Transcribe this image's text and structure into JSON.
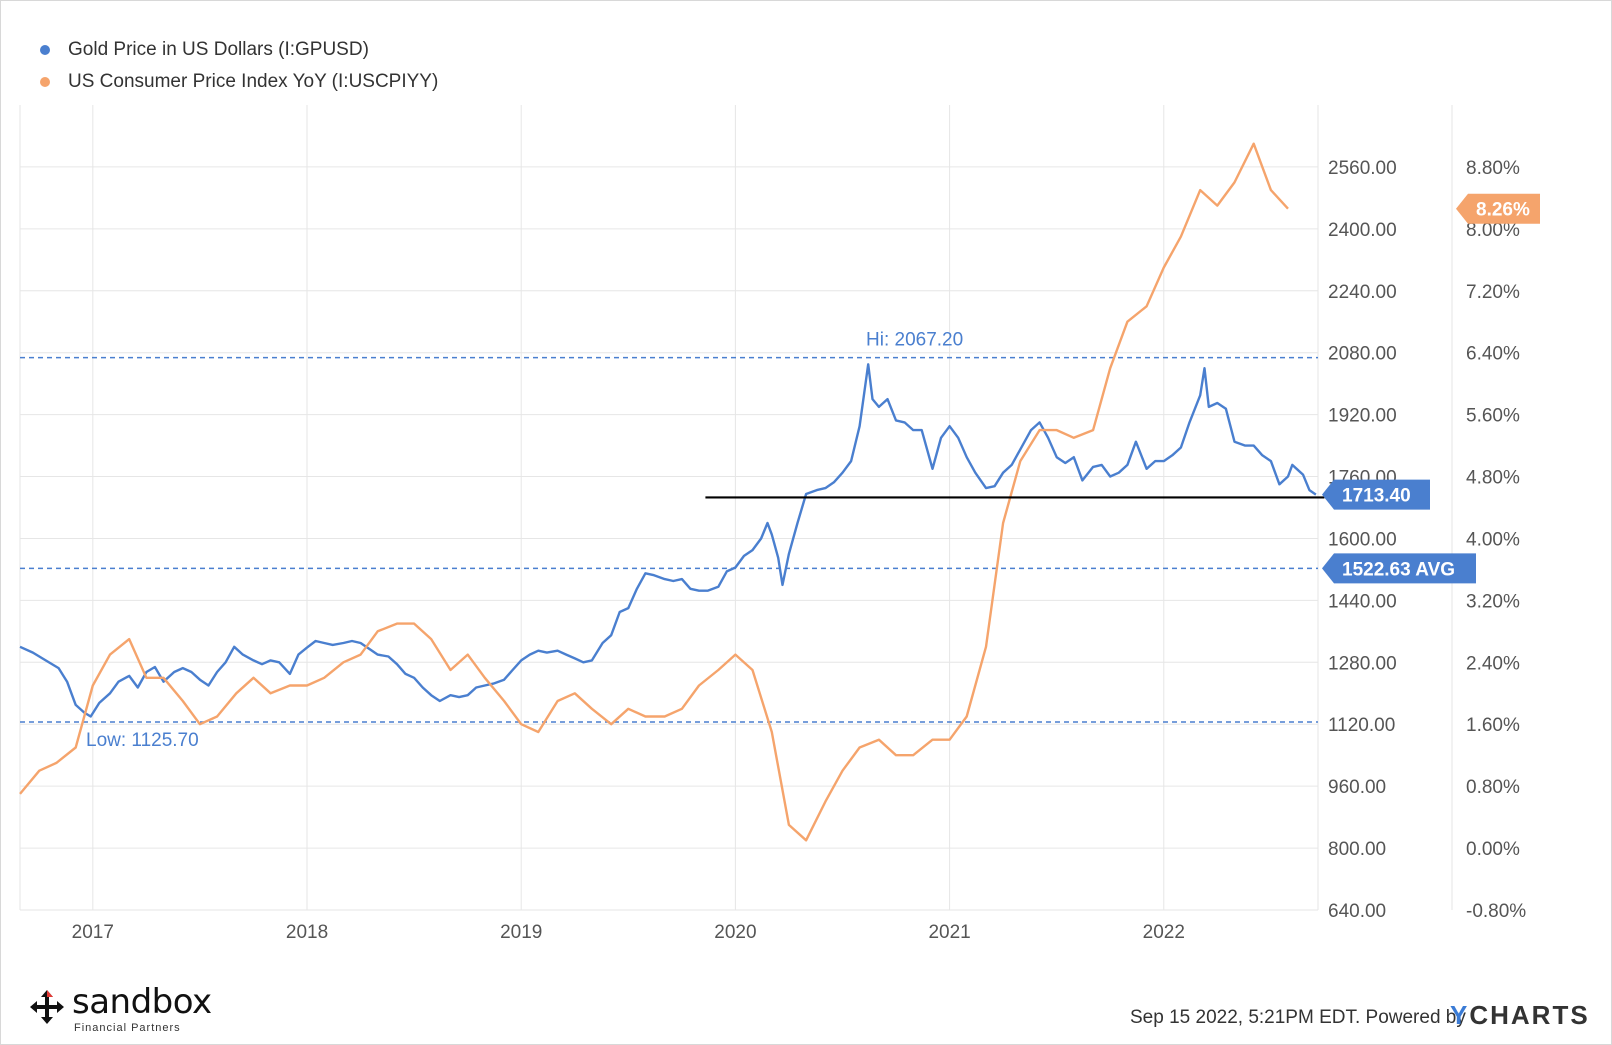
{
  "chart_data": {
    "type": "line",
    "series": [
      {
        "name": "Gold Price in US Dollars (I:GPUSD)",
        "axis": "left",
        "color": "#4a7fcf",
        "points": [
          [
            2016.66,
            1320
          ],
          [
            2016.72,
            1305
          ],
          [
            2016.78,
            1285
          ],
          [
            2016.84,
            1265
          ],
          [
            2016.88,
            1230
          ],
          [
            2016.92,
            1170
          ],
          [
            2016.96,
            1150
          ],
          [
            2016.99,
            1140
          ],
          [
            2017.03,
            1175
          ],
          [
            2017.08,
            1200
          ],
          [
            2017.12,
            1230
          ],
          [
            2017.17,
            1245
          ],
          [
            2017.21,
            1215
          ],
          [
            2017.25,
            1255
          ],
          [
            2017.29,
            1268
          ],
          [
            2017.33,
            1230
          ],
          [
            2017.38,
            1255
          ],
          [
            2017.42,
            1265
          ],
          [
            2017.46,
            1255
          ],
          [
            2017.5,
            1235
          ],
          [
            2017.54,
            1220
          ],
          [
            2017.58,
            1255
          ],
          [
            2017.62,
            1280
          ],
          [
            2017.66,
            1320
          ],
          [
            2017.7,
            1300
          ],
          [
            2017.75,
            1285
          ],
          [
            2017.79,
            1275
          ],
          [
            2017.83,
            1285
          ],
          [
            2017.87,
            1280
          ],
          [
            2017.92,
            1250
          ],
          [
            2017.96,
            1300
          ],
          [
            2018.0,
            1318
          ],
          [
            2018.04,
            1335
          ],
          [
            2018.08,
            1330
          ],
          [
            2018.12,
            1325
          ],
          [
            2018.17,
            1330
          ],
          [
            2018.21,
            1335
          ],
          [
            2018.25,
            1330
          ],
          [
            2018.29,
            1315
          ],
          [
            2018.33,
            1300
          ],
          [
            2018.38,
            1295
          ],
          [
            2018.42,
            1275
          ],
          [
            2018.46,
            1250
          ],
          [
            2018.5,
            1240
          ],
          [
            2018.54,
            1215
          ],
          [
            2018.58,
            1195
          ],
          [
            2018.62,
            1180
          ],
          [
            2018.67,
            1195
          ],
          [
            2018.71,
            1190
          ],
          [
            2018.75,
            1195
          ],
          [
            2018.79,
            1215
          ],
          [
            2018.83,
            1220
          ],
          [
            2018.87,
            1225
          ],
          [
            2018.92,
            1235
          ],
          [
            2018.96,
            1260
          ],
          [
            2019.0,
            1285
          ],
          [
            2019.04,
            1300
          ],
          [
            2019.08,
            1310
          ],
          [
            2019.12,
            1305
          ],
          [
            2019.17,
            1310
          ],
          [
            2019.21,
            1300
          ],
          [
            2019.25,
            1290
          ],
          [
            2019.29,
            1280
          ],
          [
            2019.33,
            1285
          ],
          [
            2019.38,
            1330
          ],
          [
            2019.42,
            1350
          ],
          [
            2019.46,
            1410
          ],
          [
            2019.5,
            1420
          ],
          [
            2019.54,
            1470
          ],
          [
            2019.58,
            1510
          ],
          [
            2019.62,
            1505
          ],
          [
            2019.67,
            1495
          ],
          [
            2019.71,
            1490
          ],
          [
            2019.75,
            1495
          ],
          [
            2019.79,
            1470
          ],
          [
            2019.83,
            1465
          ],
          [
            2019.87,
            1465
          ],
          [
            2019.92,
            1475
          ],
          [
            2019.96,
            1515
          ],
          [
            2020.0,
            1525
          ],
          [
            2020.04,
            1555
          ],
          [
            2020.08,
            1570
          ],
          [
            2020.12,
            1600
          ],
          [
            2020.15,
            1640
          ],
          [
            2020.17,
            1610
          ],
          [
            2020.2,
            1550
          ],
          [
            2020.22,
            1480
          ],
          [
            2020.25,
            1560
          ],
          [
            2020.29,
            1640
          ],
          [
            2020.33,
            1715
          ],
          [
            2020.38,
            1725
          ],
          [
            2020.42,
            1730
          ],
          [
            2020.46,
            1745
          ],
          [
            2020.5,
            1770
          ],
          [
            2020.54,
            1800
          ],
          [
            2020.58,
            1890
          ],
          [
            2020.6,
            1970
          ],
          [
            2020.62,
            2050
          ],
          [
            2020.64,
            1960
          ],
          [
            2020.67,
            1940
          ],
          [
            2020.71,
            1960
          ],
          [
            2020.75,
            1905
          ],
          [
            2020.79,
            1900
          ],
          [
            2020.83,
            1880
          ],
          [
            2020.87,
            1880
          ],
          [
            2020.92,
            1780
          ],
          [
            2020.96,
            1860
          ],
          [
            2021.0,
            1890
          ],
          [
            2021.04,
            1860
          ],
          [
            2021.08,
            1810
          ],
          [
            2021.12,
            1770
          ],
          [
            2021.17,
            1730
          ],
          [
            2021.21,
            1735
          ],
          [
            2021.25,
            1770
          ],
          [
            2021.29,
            1790
          ],
          [
            2021.33,
            1830
          ],
          [
            2021.38,
            1880
          ],
          [
            2021.42,
            1900
          ],
          [
            2021.46,
            1860
          ],
          [
            2021.5,
            1810
          ],
          [
            2021.54,
            1795
          ],
          [
            2021.58,
            1810
          ],
          [
            2021.62,
            1750
          ],
          [
            2021.67,
            1785
          ],
          [
            2021.71,
            1790
          ],
          [
            2021.75,
            1760
          ],
          [
            2021.79,
            1770
          ],
          [
            2021.83,
            1790
          ],
          [
            2021.87,
            1850
          ],
          [
            2021.92,
            1780
          ],
          [
            2021.96,
            1800
          ],
          [
            2022.0,
            1800
          ],
          [
            2022.04,
            1815
          ],
          [
            2022.08,
            1835
          ],
          [
            2022.12,
            1900
          ],
          [
            2022.17,
            1970
          ],
          [
            2022.19,
            2040
          ],
          [
            2022.21,
            1940
          ],
          [
            2022.25,
            1950
          ],
          [
            2022.29,
            1935
          ],
          [
            2022.33,
            1850
          ],
          [
            2022.38,
            1840
          ],
          [
            2022.42,
            1840
          ],
          [
            2022.46,
            1815
          ],
          [
            2022.5,
            1800
          ],
          [
            2022.54,
            1740
          ],
          [
            2022.58,
            1760
          ],
          [
            2022.6,
            1790
          ],
          [
            2022.62,
            1780
          ],
          [
            2022.65,
            1765
          ],
          [
            2022.68,
            1725
          ],
          [
            2022.71,
            1713.4
          ]
        ]
      },
      {
        "name": "US Consumer Price Index YoY (I:USCPIYY)",
        "axis": "right",
        "color": "#f5a46c",
        "points": [
          [
            2016.66,
            0.7
          ],
          [
            2016.75,
            1.0
          ],
          [
            2016.83,
            1.1
          ],
          [
            2016.92,
            1.3
          ],
          [
            2017.0,
            2.1
          ],
          [
            2017.08,
            2.5
          ],
          [
            2017.17,
            2.7
          ],
          [
            2017.25,
            2.2
          ],
          [
            2017.33,
            2.2
          ],
          [
            2017.42,
            1.9
          ],
          [
            2017.5,
            1.6
          ],
          [
            2017.58,
            1.7
          ],
          [
            2017.67,
            2.0
          ],
          [
            2017.75,
            2.2
          ],
          [
            2017.83,
            2.0
          ],
          [
            2017.92,
            2.1
          ],
          [
            2018.0,
            2.1
          ],
          [
            2018.08,
            2.2
          ],
          [
            2018.17,
            2.4
          ],
          [
            2018.25,
            2.5
          ],
          [
            2018.33,
            2.8
          ],
          [
            2018.42,
            2.9
          ],
          [
            2018.5,
            2.9
          ],
          [
            2018.58,
            2.7
          ],
          [
            2018.67,
            2.3
          ],
          [
            2018.75,
            2.5
          ],
          [
            2018.83,
            2.2
          ],
          [
            2018.92,
            1.9
          ],
          [
            2019.0,
            1.6
          ],
          [
            2019.08,
            1.5
          ],
          [
            2019.17,
            1.9
          ],
          [
            2019.25,
            2.0
          ],
          [
            2019.33,
            1.8
          ],
          [
            2019.42,
            1.6
          ],
          [
            2019.5,
            1.8
          ],
          [
            2019.58,
            1.7
          ],
          [
            2019.67,
            1.7
          ],
          [
            2019.75,
            1.8
          ],
          [
            2019.83,
            2.1
          ],
          [
            2019.92,
            2.3
          ],
          [
            2020.0,
            2.5
          ],
          [
            2020.08,
            2.3
          ],
          [
            2020.17,
            1.5
          ],
          [
            2020.25,
            0.3
          ],
          [
            2020.33,
            0.1
          ],
          [
            2020.42,
            0.6
          ],
          [
            2020.5,
            1.0
          ],
          [
            2020.58,
            1.3
          ],
          [
            2020.67,
            1.4
          ],
          [
            2020.75,
            1.2
          ],
          [
            2020.83,
            1.2
          ],
          [
            2020.92,
            1.4
          ],
          [
            2021.0,
            1.4
          ],
          [
            2021.08,
            1.7
          ],
          [
            2021.17,
            2.6
          ],
          [
            2021.25,
            4.2
          ],
          [
            2021.33,
            5.0
          ],
          [
            2021.42,
            5.4
          ],
          [
            2021.5,
            5.4
          ],
          [
            2021.58,
            5.3
          ],
          [
            2021.67,
            5.4
          ],
          [
            2021.75,
            6.2
          ],
          [
            2021.83,
            6.8
          ],
          [
            2021.92,
            7.0
          ],
          [
            2022.0,
            7.5
          ],
          [
            2022.08,
            7.9
          ],
          [
            2022.17,
            8.5
          ],
          [
            2022.25,
            8.3
          ],
          [
            2022.33,
            8.6
          ],
          [
            2022.42,
            9.1
          ],
          [
            2022.5,
            8.5
          ],
          [
            2022.58,
            8.26
          ]
        ]
      }
    ],
    "x_ticks": [
      "2017",
      "2018",
      "2019",
      "2020",
      "2021",
      "2022"
    ],
    "x_tick_values": [
      2017,
      2018,
      2019,
      2020,
      2021,
      2022
    ],
    "xlim": [
      2016.66,
      2022.72
    ],
    "y_left_ticks": [
      "2560.00",
      "2400.00",
      "2240.00",
      "2080.00",
      "1920.00",
      "1760.00",
      "1600.00",
      "1440.00",
      "1280.00",
      "1120.00",
      "960.00",
      "800.00",
      "640.00"
    ],
    "y_left_tick_values": [
      2560,
      2400,
      2240,
      2080,
      1920,
      1760,
      1600,
      1440,
      1280,
      1120,
      960,
      800,
      640
    ],
    "ylim_left": [
      640,
      2720
    ],
    "y_right_ticks": [
      "8.80%",
      "8.00%",
      "7.20%",
      "6.40%",
      "5.60%",
      "4.80%",
      "4.00%",
      "3.20%",
      "2.40%",
      "1.60%",
      "0.80%",
      "0.00%",
      "-0.80%"
    ],
    "y_right_tick_values": [
      8.8,
      8.0,
      7.2,
      6.4,
      5.6,
      4.8,
      4.0,
      3.2,
      2.4,
      1.6,
      0.8,
      0.0,
      -0.8
    ],
    "ylim_right": [
      -0.8,
      9.6
    ],
    "reference_lines": [
      {
        "label": "Hi: 2067.20",
        "value": 2067.2,
        "axis": "left"
      },
      {
        "label": "1522.63 AVG",
        "value": 1522.63,
        "axis": "left"
      },
      {
        "label": "Low: 1125.70",
        "value": 1125.7,
        "axis": "left"
      }
    ],
    "support_line": {
      "value": 1706,
      "x_start": 2019.86,
      "x_end": 2022.75
    },
    "last_values": [
      {
        "label": "1713.40",
        "value": 1713.4,
        "axis": "left"
      },
      {
        "label": "8.26%",
        "value": 8.26,
        "axis": "right"
      }
    ],
    "grid": true,
    "legend_position": "top-left"
  },
  "footer": {
    "timestamp": "Sep 15 2022, 5:21PM EDT. Powered by",
    "brand_y": "Y",
    "brand_rest": "CHARTS"
  },
  "logo": {
    "name": "sandbox",
    "subtitle": "Financial Partners"
  },
  "colors": {
    "gold": "#4a7fcf",
    "cpi": "#f5a46c",
    "grid": "#e6e6e6",
    "ref_line": "#4a7fcf",
    "support": "#000000"
  }
}
